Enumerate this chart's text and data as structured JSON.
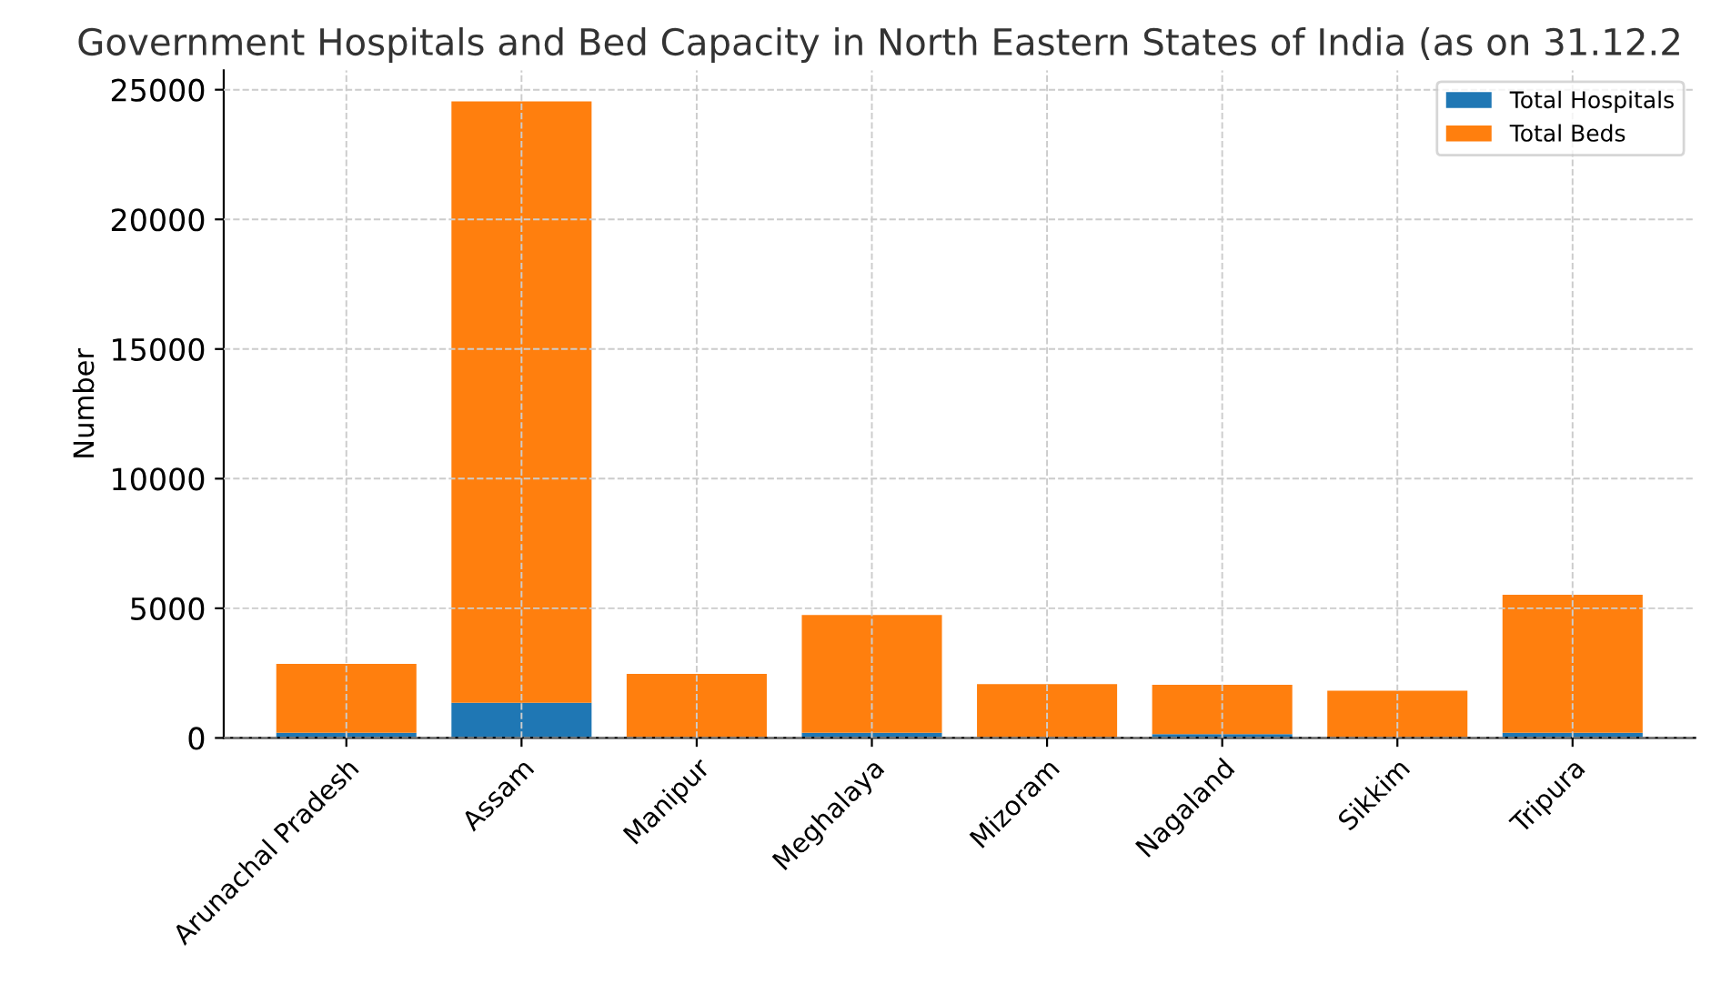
{
  "chart_data": {
    "type": "bar",
    "title": "Government Hospitals and Bed Capacity in North Eastern States of India (as on 31.12.2",
    "ylabel": "Number",
    "categories": [
      "Arunachal Pradesh",
      "Assam",
      "Manipur",
      "Meghalaya",
      "Mizoram",
      "Nagaland",
      "Sikkim",
      "Tripura"
    ],
    "stacked": true,
    "series": [
      {
        "name": "Total Hospitals",
        "color": "#1f77b4",
        "values": [
          200,
          1360,
          null,
          200,
          null,
          150,
          null,
          200
        ]
      },
      {
        "name": "Total Beds",
        "color": "#ff7f0e",
        "values": [
          2660,
          23190,
          2470,
          4540,
          2080,
          1900,
          1820,
          5320
        ]
      }
    ],
    "ylim": [
      0,
      25750
    ],
    "yticks": [
      0,
      5000,
      10000,
      15000,
      20000,
      25000
    ],
    "grid": true,
    "legend": "top right"
  }
}
